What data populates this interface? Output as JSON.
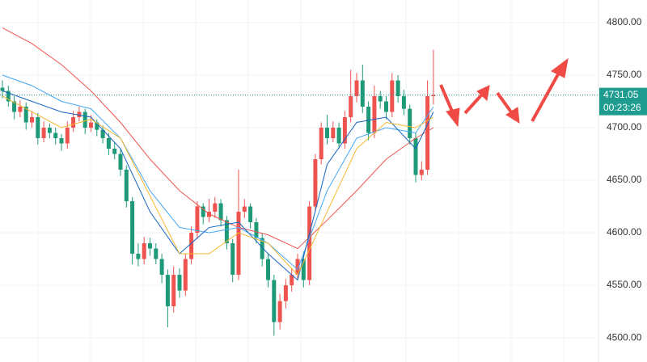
{
  "chart_data": {
    "type": "candlestick",
    "ylim": [
      4477,
      4821.5
    ],
    "yticks": [
      {
        "value": 4500,
        "label": "4500.00"
      },
      {
        "value": 4550,
        "label": "4550.00"
      },
      {
        "value": 4600,
        "label": "4600.00"
      },
      {
        "value": 4650,
        "label": "4650.00"
      },
      {
        "value": 4700,
        "label": "4700.00"
      },
      {
        "value": 4750,
        "label": "4750.00"
      },
      {
        "value": 4800,
        "label": "4800.00"
      }
    ],
    "grid": true,
    "up_color": "#ef5350",
    "down_color": "#1f9a78",
    "open": [
      4738,
      4735,
      4725,
      4715,
      4720,
      4705,
      4710,
      4690,
      4700,
      4695,
      4690,
      4685,
      4700,
      4710,
      4715,
      4700,
      4705,
      4698,
      4690,
      4680,
      4675,
      4660,
      4630,
      4580,
      4575,
      4590,
      4585,
      4575,
      4560,
      4530,
      4560,
      4545,
      4575,
      4600,
      4625,
      4615,
      4620,
      4628,
      4612,
      4590,
      4560,
      4620,
      4625,
      4610,
      4595,
      4575,
      4555,
      4515,
      4535,
      4550,
      4560,
      4575,
      4555,
      4625,
      4670,
      4700,
      4690,
      4700,
      4685,
      4710,
      4730,
      4745,
      4720,
      4695,
      4730,
      4725,
      4715,
      4745,
      4730,
      4718,
      4690,
      4655,
      4660,
      4730
    ],
    "high": [
      4745,
      4740,
      4730,
      4726,
      4724,
      4716,
      4714,
      4706,
      4704,
      4700,
      4694,
      4706,
      4716,
      4720,
      4718,
      4712,
      4708,
      4702,
      4695,
      4686,
      4680,
      4664,
      4634,
      4590,
      4596,
      4595,
      4590,
      4580,
      4565,
      4568,
      4566,
      4580,
      4606,
      4630,
      4628,
      4632,
      4634,
      4632,
      4616,
      4594,
      4660,
      4632,
      4628,
      4614,
      4600,
      4580,
      4560,
      4542,
      4556,
      4566,
      4580,
      4582,
      4630,
      4675,
      4705,
      4712,
      4706,
      4705,
      4716,
      4755,
      4752,
      4760,
      4725,
      4740,
      4735,
      4730,
      4752,
      4750,
      4736,
      4722,
      4695,
      4668,
      4745,
      4774
    ],
    "low": [
      4728,
      4720,
      4708,
      4710,
      4698,
      4700,
      4684,
      4686,
      4690,
      4684,
      4678,
      4680,
      4696,
      4706,
      4694,
      4696,
      4692,
      4685,
      4674,
      4670,
      4654,
      4624,
      4570,
      4568,
      4570,
      4578,
      4570,
      4552,
      4510,
      4524,
      4538,
      4540,
      4570,
      4594,
      4608,
      4610,
      4614,
      4606,
      4584,
      4553,
      4555,
      4614,
      4604,
      4590,
      4568,
      4548,
      4502,
      4508,
      4528,
      4544,
      4555,
      4548,
      4550,
      4620,
      4665,
      4684,
      4686,
      4680,
      4680,
      4705,
      4724,
      4714,
      4688,
      4690,
      4718,
      4708,
      4710,
      4724,
      4712,
      4684,
      4648,
      4650,
      4655,
      4722
    ],
    "close": [
      4735,
      4725,
      4715,
      4720,
      4705,
      4710,
      4690,
      4700,
      4695,
      4690,
      4685,
      4700,
      4710,
      4715,
      4700,
      4705,
      4698,
      4690,
      4680,
      4675,
      4660,
      4630,
      4580,
      4575,
      4590,
      4585,
      4575,
      4560,
      4530,
      4560,
      4545,
      4575,
      4600,
      4625,
      4615,
      4620,
      4628,
      4612,
      4590,
      4560,
      4620,
      4625,
      4610,
      4595,
      4575,
      4555,
      4515,
      4535,
      4550,
      4560,
      4575,
      4555,
      4625,
      4670,
      4700,
      4690,
      4700,
      4685,
      4710,
      4730,
      4745,
      4720,
      4695,
      4730,
      4725,
      4715,
      4745,
      4730,
      4718,
      4690,
      4655,
      4660,
      4730,
      4731.05
    ],
    "lines": [
      {
        "color": "#f0544f",
        "x": [
          0,
          5,
          10,
          15,
          20,
          25,
          30,
          35,
          40,
          45,
          50,
          55,
          60,
          65,
          70,
          73
        ],
        "values": [
          4795,
          4780,
          4760,
          4735,
          4705,
          4670,
          4640,
          4618,
          4605,
          4598,
          4585,
          4612,
          4640,
          4670,
          4690,
          4700
        ]
      },
      {
        "color": "#42a5f5",
        "x": [
          0,
          5,
          10,
          15,
          20,
          25,
          30,
          35,
          40,
          45,
          50,
          55,
          60,
          65,
          70,
          73
        ],
        "values": [
          4750,
          4740,
          4725,
          4718,
          4690,
          4640,
          4605,
          4600,
          4605,
          4590,
          4565,
          4640,
          4690,
          4700,
          4695,
          4720
        ]
      },
      {
        "color": "#1565c0",
        "x": [
          0,
          5,
          10,
          15,
          20,
          25,
          30,
          35,
          40,
          45,
          50,
          55,
          60,
          65,
          70,
          73
        ],
        "values": [
          4735,
          4725,
          4715,
          4710,
          4680,
          4620,
          4580,
          4605,
          4610,
          4580,
          4555,
          4665,
          4705,
          4710,
          4680,
          4715
        ]
      },
      {
        "color": "#f5b82e",
        "x": [
          0,
          5,
          10,
          15,
          20,
          25,
          30,
          35,
          40,
          45,
          50,
          55,
          60,
          65,
          70,
          73
        ],
        "values": [
          4730,
          4715,
          4700,
          4708,
          4690,
          4635,
          4580,
          4580,
          4600,
          4590,
          4560,
          4620,
          4680,
          4705,
          4700,
          4710
        ]
      }
    ],
    "current_price": 4731.05,
    "price_tag_color": "#1e9c8f",
    "countdown": "00:23:26"
  }
}
